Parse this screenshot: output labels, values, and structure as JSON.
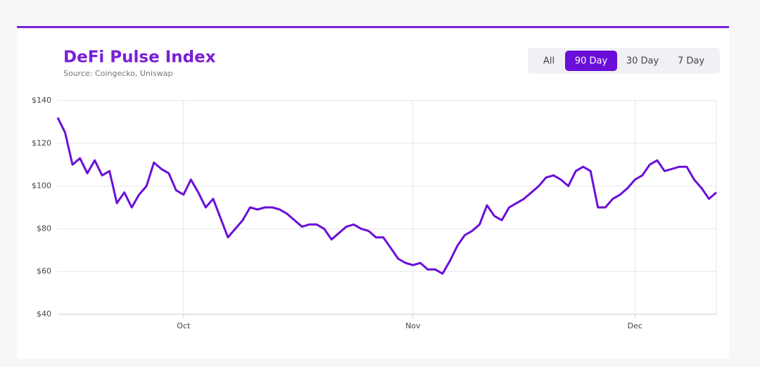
{
  "chart_data": {
    "type": "line",
    "title": "DeFi Pulse Index",
    "subtitle": "Source: Coingecko, Uniswap",
    "range_buttons": [
      "All",
      "90 Day",
      "30 Day",
      "7 Day"
    ],
    "active_range": 1,
    "categories": [
      null,
      null,
      null,
      null,
      null,
      null,
      null,
      null,
      null,
      null,
      null,
      null,
      null,
      null,
      null,
      null,
      null,
      "Oct",
      null,
      null,
      null,
      null,
      null,
      null,
      null,
      null,
      null,
      null,
      null,
      null,
      null,
      null,
      null,
      null,
      null,
      null,
      null,
      null,
      null,
      null,
      null,
      null,
      null,
      null,
      null,
      null,
      null,
      null,
      "Nov",
      null,
      null,
      null,
      null,
      null,
      null,
      null,
      null,
      null,
      null,
      null,
      null,
      null,
      null,
      null,
      null,
      null,
      null,
      null,
      null,
      null,
      null,
      null,
      null,
      null,
      null,
      null,
      null,
      null,
      "Dec",
      null,
      null,
      null,
      null,
      null,
      null,
      null,
      null,
      null,
      null,
      null
    ],
    "values": [
      132,
      125,
      110,
      113,
      106,
      112,
      105,
      107,
      92,
      97,
      90,
      96,
      100,
      111,
      108,
      106,
      98,
      96,
      103,
      97,
      90,
      94,
      85,
      76,
      80,
      84,
      90,
      89,
      90,
      90,
      89,
      87,
      84,
      81,
      82,
      82,
      80,
      75,
      78,
      81,
      82,
      80,
      79,
      76,
      76,
      71,
      66,
      64,
      63,
      64,
      61,
      61,
      59,
      65,
      72,
      77,
      79,
      82,
      91,
      86,
      84,
      90,
      92,
      94,
      97,
      100,
      104,
      105,
      103,
      100,
      107,
      109,
      107,
      90,
      90,
      94,
      96,
      99,
      103,
      105,
      110,
      112,
      107,
      108,
      109,
      109,
      103,
      99,
      94,
      97
    ],
    "color": "#6a0fd8",
    "ylim": [
      40,
      140
    ],
    "yticks": [
      {
        "value": 40,
        "label": "$40"
      },
      {
        "value": 60,
        "label": "$60"
      },
      {
        "value": 80,
        "label": "$80"
      },
      {
        "value": 100,
        "label": "$100"
      },
      {
        "value": 120,
        "label": "$120"
      },
      {
        "value": 140,
        "label": "$140"
      }
    ],
    "grid": true
  }
}
